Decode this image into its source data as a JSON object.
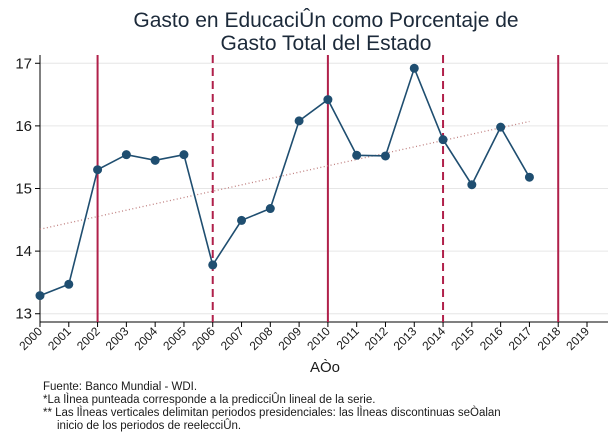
{
  "chart_data": {
    "type": "line",
    "title_lines": [
      "Gasto en EducaciÛn como Porcentaje de",
      "Gasto Total del Estado"
    ],
    "xlabel": "AÒo",
    "ylabel": "",
    "x_ticks": [
      2000,
      2001,
      2002,
      2003,
      2004,
      2005,
      2006,
      2007,
      2008,
      2009,
      2010,
      2011,
      2012,
      2013,
      2014,
      2015,
      2016,
      2017,
      2018,
      2019
    ],
    "xlim": [
      2000,
      2019
    ],
    "ylim": [
      12.9,
      17.1
    ],
    "y_ticks": [
      13,
      14,
      15,
      16,
      17
    ],
    "grid": true,
    "series": [
      {
        "name": "Gasto en EducaciÛn",
        "color": "#1f4e70",
        "x": [
          2000,
          2001,
          2002,
          2003,
          2004,
          2005,
          2006,
          2007,
          2008,
          2009,
          2010,
          2011,
          2012,
          2013,
          2014,
          2015,
          2016,
          2017
        ],
        "values": [
          13.29,
          13.47,
          15.3,
          15.54,
          15.45,
          15.54,
          13.78,
          14.49,
          14.68,
          16.08,
          16.42,
          15.53,
          15.52,
          16.92,
          15.78,
          15.06,
          15.98,
          15.18
        ]
      }
    ],
    "trend": {
      "name": "PredicciÛn lineal",
      "color": "#c08080",
      "x": [
        2000,
        2017
      ],
      "values": [
        14.35,
        16.07
      ]
    },
    "vlines": [
      {
        "x": 2002,
        "style": "solid",
        "color": "#b0204a"
      },
      {
        "x": 2006,
        "style": "dashed",
        "color": "#b0204a"
      },
      {
        "x": 2010,
        "style": "solid",
        "color": "#b0204a"
      },
      {
        "x": 2014,
        "style": "dashed",
        "color": "#b0204a"
      },
      {
        "x": 2018,
        "style": "solid",
        "color": "#b0204a"
      }
    ]
  },
  "notes": {
    "source": "Fuente: Banco Mundial - WDI.",
    "note1": "*La lÌnea punteada corresponde a la predicciÛn lineal de la serie.",
    "note2a": "** Las lÌneas verticales delimitan periodos presidenciales: las lÌneas discontinuas seÒalan",
    "note2b": "inicio de los periodos de reelecciÛn."
  }
}
